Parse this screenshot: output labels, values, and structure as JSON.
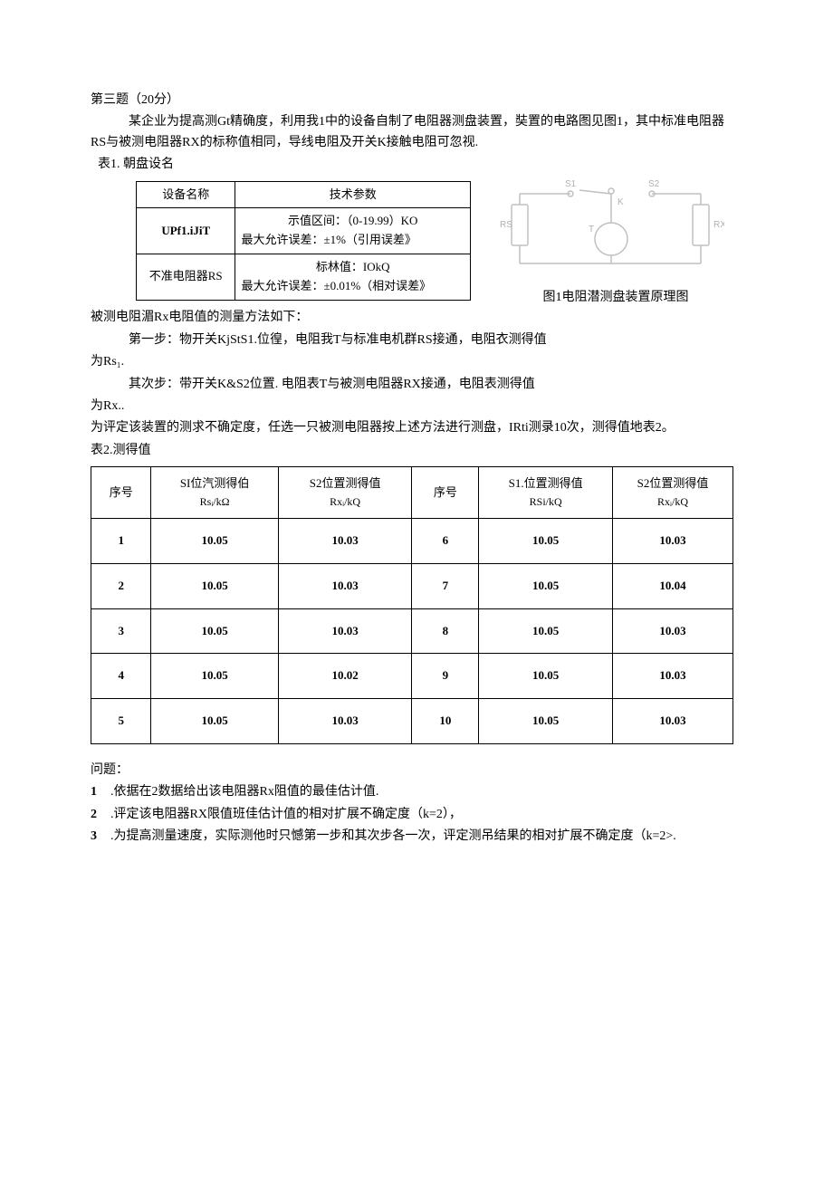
{
  "header": {
    "title_line": "第三题（20分）",
    "intro1": "某企业为提高测Gt精确度，利用我1中的设备自制了电阻器测盘装置，奘置的电路图见图1，其中标准电阻器RS与被测电阻器RX的标称值相同，导线电阻及开关K接触电阻可忽视.",
    "table1_caption": "表1. 朝盘设名"
  },
  "table1": {
    "headers": [
      "设备名称",
      "技术参数"
    ],
    "rows": [
      {
        "name": "UPf1.iJiT",
        "line1": "示值区间：（0-19.99）KO",
        "line2": "最大允许误差：±1%（引用误差》"
      },
      {
        "name": "不准电阻器RS",
        "line1": "标林值：IOkQ",
        "line2": "最大允许误差：±0.01%（相对误差》"
      }
    ]
  },
  "figure": {
    "caption": "图1电阻潜测盘装置原理图",
    "labels": {
      "s1": "S1",
      "s2": "S2",
      "k": "K",
      "rs": "RS",
      "rx": "RX",
      "t": "T"
    },
    "colors": {
      "stroke": "#b8b8b8",
      "fill": "none"
    }
  },
  "method": {
    "intro": "被测电阻湄Rx电阻值的测量方法如下：",
    "step1": "第一步：物开关KjStS1.位徨，电阻我T与标准电机群RS接通，电阻衣测得值",
    "step1b": "为Rs₁.",
    "step2": "其次步：带开关K&S2位置. 电阻表T与被测电阻器RX接通，电阻表测得值",
    "step2b": "为Rx..",
    "outro": "为评定该装置的测求不确定度，任选一只被测电阻器按上述方法进行测盘，IRti测录10次，测得值地表2。",
    "table2_caption": "表2.测得值"
  },
  "table2": {
    "headers": {
      "seq": "序号",
      "s1_label": "SI位汽测得伯",
      "s1_unit": "Rsᵢ/kΩ",
      "s2_label": "S2位置测得值",
      "s2_unit": "Rxᵢ/kQ",
      "seq2": "序号",
      "s1b_label": "S1.位置测得值",
      "s1b_unit": "RSi/kQ",
      "s2b_label": "S2位置测得值",
      "s2b_unit": "Rxᵢ/kQ"
    },
    "rows": [
      {
        "n1": "1",
        "rs1": "10.05",
        "rx1": "10.03",
        "n2": "6",
        "rs2": "10.05",
        "rx2": "10.03"
      },
      {
        "n1": "2",
        "rs1": "10.05",
        "rx1": "10.03",
        "n2": "7",
        "rs2": "10.05",
        "rx2": "10.04"
      },
      {
        "n1": "3",
        "rs1": "10.05",
        "rx1": "10.03",
        "n2": "8",
        "rs2": "10.05",
        "rx2": "10.03"
      },
      {
        "n1": "4",
        "rs1": "10.05",
        "rx1": "10.02",
        "n2": "9",
        "rs2": "10.05",
        "rx2": "10.03"
      },
      {
        "n1": "5",
        "rs1": "10.05",
        "rx1": "10.03",
        "n2": "10",
        "rs2": "10.05",
        "rx2": "10.03"
      }
    ]
  },
  "questions": {
    "title": "问题：",
    "items": [
      {
        "num": "1",
        "text": ".依据在2数据给出该电阻器Rx阻值的最佳估计值."
      },
      {
        "num": "2",
        "text": ".评定该电阻器RX限值班佳估计值的相对扩展不确定度（k=2），"
      },
      {
        "num": "3",
        "text": ".为提高测量速度，实际测他时只憾第一步和其次步各一次，评定测吊结果的相对扩展不确定度（k=2>."
      }
    ]
  }
}
